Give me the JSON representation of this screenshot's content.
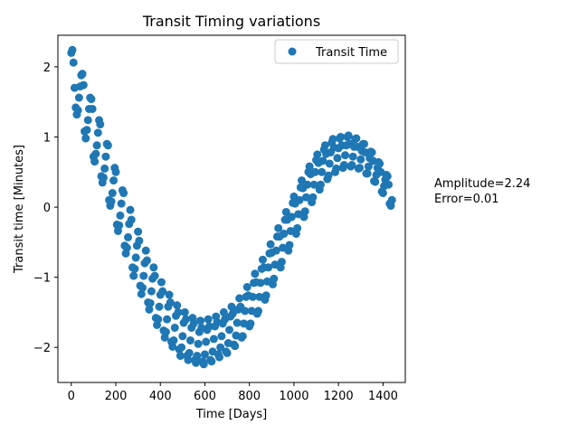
{
  "chart_data": {
    "type": "scatter",
    "title": "Transit Timing variations",
    "xlabel": "Time [Days]",
    "ylabel": "Transit time [Minutes]",
    "xlim": [
      -60,
      1500
    ],
    "ylim": [
      -2.5,
      2.45
    ],
    "xticks": [
      0,
      200,
      400,
      600,
      800,
      1000,
      1200,
      1400
    ],
    "yticks": [
      -2,
      -1,
      0,
      1,
      2
    ],
    "xtick_labels": [
      "0",
      "200",
      "400",
      "600",
      "800",
      "1000",
      "1200",
      "1400"
    ],
    "ytick_labels": [
      "−2",
      "−1",
      "0",
      "1",
      "2"
    ],
    "grid": false,
    "legend_position": "top-right",
    "color": "#1f77b4",
    "series": [
      {
        "name": "Transit Time",
        "points": [
          [
            0,
            2.2
          ],
          [
            5,
            2.24
          ],
          [
            10,
            2.06
          ],
          [
            15,
            1.7
          ],
          [
            20,
            1.42
          ],
          [
            25,
            1.32
          ],
          [
            30,
            1.38
          ],
          [
            35,
            1.56
          ],
          [
            40,
            1.72
          ],
          [
            45,
            1.88
          ],
          [
            50,
            1.9
          ],
          [
            55,
            1.74
          ],
          [
            60,
            1.08
          ],
          [
            65,
            0.98
          ],
          [
            70,
            1.1
          ],
          [
            75,
            1.24
          ],
          [
            80,
            1.4
          ],
          [
            85,
            1.56
          ],
          [
            90,
            1.54
          ],
          [
            95,
            1.4
          ],
          [
            100,
            0.72
          ],
          [
            105,
            0.65
          ],
          [
            110,
            0.76
          ],
          [
            115,
            0.88
          ],
          [
            120,
            1.06
          ],
          [
            125,
            1.24
          ],
          [
            130,
            1.18
          ],
          [
            135,
            0.44
          ],
          [
            140,
            0.35
          ],
          [
            145,
            0.42
          ],
          [
            150,
            0.55
          ],
          [
            155,
            0.72
          ],
          [
            160,
            0.9
          ],
          [
            165,
            0.88
          ],
          [
            170,
            0.1
          ],
          [
            175,
            0.02
          ],
          [
            180,
            0.08
          ],
          [
            185,
            0.2
          ],
          [
            190,
            0.38
          ],
          [
            195,
            0.56
          ],
          [
            200,
            0.5
          ],
          [
            205,
            -0.25
          ],
          [
            210,
            -0.34
          ],
          [
            215,
            -0.26
          ],
          [
            220,
            -0.12
          ],
          [
            225,
            0.05
          ],
          [
            230,
            0.24
          ],
          [
            235,
            0.2
          ],
          [
            240,
            -0.55
          ],
          [
            245,
            -0.66
          ],
          [
            250,
            -0.58
          ],
          [
            255,
            -0.43
          ],
          [
            260,
            -0.24
          ],
          [
            265,
            -0.04
          ],
          [
            270,
            -0.18
          ],
          [
            275,
            -0.86
          ],
          [
            280,
            -0.98
          ],
          [
            285,
            -0.88
          ],
          [
            290,
            -0.72
          ],
          [
            295,
            -0.55
          ],
          [
            300,
            -0.35
          ],
          [
            305,
            -0.48
          ],
          [
            310,
            -1.12
          ],
          [
            315,
            -1.24
          ],
          [
            320,
            -1.15
          ],
          [
            325,
            -0.98
          ],
          [
            330,
            -0.8
          ],
          [
            335,
            -0.62
          ],
          [
            340,
            -0.76
          ],
          [
            345,
            -1.36
          ],
          [
            350,
            -1.46
          ],
          [
            355,
            -1.37
          ],
          [
            360,
            -1.2
          ],
          [
            365,
            -1.02
          ],
          [
            370,
            -0.86
          ],
          [
            375,
            -0.98
          ],
          [
            380,
            -1.58
          ],
          [
            385,
            -1.68
          ],
          [
            390,
            -1.6
          ],
          [
            395,
            -1.42
          ],
          [
            400,
            -1.25
          ],
          [
            405,
            -1.07
          ],
          [
            410,
            -1.2
          ],
          [
            415,
            -1.76
          ],
          [
            420,
            -1.86
          ],
          [
            425,
            -1.78
          ],
          [
            430,
            -1.6
          ],
          [
            435,
            -1.42
          ],
          [
            440,
            -1.25
          ],
          [
            445,
            -1.36
          ],
          [
            450,
            -1.92
          ],
          [
            455,
            -1.99
          ],
          [
            460,
            -1.9
          ],
          [
            465,
            -1.72
          ],
          [
            470,
            -1.55
          ],
          [
            475,
            -1.4
          ],
          [
            480,
            -1.5
          ],
          [
            485,
            -2.03
          ],
          [
            490,
            -2.12
          ],
          [
            495,
            -2.0
          ],
          [
            500,
            -1.84
          ],
          [
            505,
            -1.65
          ],
          [
            510,
            -1.5
          ],
          [
            515,
            -1.6
          ],
          [
            520,
            -2.12
          ],
          [
            525,
            -2.18
          ],
          [
            530,
            -2.08
          ],
          [
            535,
            -1.9
          ],
          [
            540,
            -1.72
          ],
          [
            545,
            -1.58
          ],
          [
            550,
            -1.66
          ],
          [
            555,
            -2.18
          ],
          [
            560,
            -2.22
          ],
          [
            565,
            -2.12
          ],
          [
            570,
            -1.95
          ],
          [
            575,
            -1.78
          ],
          [
            580,
            -1.62
          ],
          [
            585,
            -1.72
          ],
          [
            590,
            -2.2
          ],
          [
            595,
            -2.24
          ],
          [
            600,
            -2.1
          ],
          [
            605,
            -1.92
          ],
          [
            610,
            -1.75
          ],
          [
            615,
            -1.6
          ],
          [
            620,
            -1.7
          ],
          [
            625,
            -2.18
          ],
          [
            630,
            -2.2
          ],
          [
            635,
            -2.06
          ],
          [
            640,
            -1.88
          ],
          [
            645,
            -1.7
          ],
          [
            650,
            -1.56
          ],
          [
            655,
            -1.64
          ],
          [
            660,
            -2.1
          ],
          [
            665,
            -2.14
          ],
          [
            670,
            -2.0
          ],
          [
            675,
            -1.84
          ],
          [
            680,
            -1.66
          ],
          [
            685,
            -1.5
          ],
          [
            690,
            -1.6
          ],
          [
            695,
            -2.06
          ],
          [
            700,
            -2.08
          ],
          [
            705,
            -1.94
          ],
          [
            710,
            -1.75
          ],
          [
            715,
            -1.56
          ],
          [
            720,
            -1.42
          ],
          [
            725,
            -1.52
          ],
          [
            730,
            -1.96
          ],
          [
            735,
            -1.98
          ],
          [
            740,
            -1.83
          ],
          [
            745,
            -1.65
          ],
          [
            750,
            -1.46
          ],
          [
            755,
            -1.3
          ],
          [
            760,
            -1.42
          ],
          [
            765,
            -1.86
          ],
          [
            770,
            -1.84
          ],
          [
            775,
            -1.66
          ],
          [
            780,
            -1.48
          ],
          [
            785,
            -1.28
          ],
          [
            790,
            -1.14
          ],
          [
            795,
            -1.26
          ],
          [
            800,
            -1.7
          ],
          [
            805,
            -1.66
          ],
          [
            810,
            -1.48
          ],
          [
            815,
            -1.28
          ],
          [
            820,
            -1.08
          ],
          [
            825,
            -0.95
          ],
          [
            830,
            -1.07
          ],
          [
            835,
            -1.52
          ],
          [
            840,
            -1.48
          ],
          [
            845,
            -1.28
          ],
          [
            850,
            -1.08
          ],
          [
            855,
            -0.88
          ],
          [
            860,
            -0.75
          ],
          [
            865,
            -0.86
          ],
          [
            870,
            -1.32
          ],
          [
            875,
            -1.26
          ],
          [
            880,
            -1.06
          ],
          [
            885,
            -0.86
          ],
          [
            890,
            -0.66
          ],
          [
            895,
            -0.53
          ],
          [
            900,
            -0.65
          ],
          [
            905,
            -1.1
          ],
          [
            910,
            -1.02
          ],
          [
            915,
            -0.82
          ],
          [
            920,
            -0.62
          ],
          [
            925,
            -0.42
          ],
          [
            930,
            -0.3
          ],
          [
            935,
            -0.42
          ],
          [
            940,
            -0.86
          ],
          [
            945,
            -0.78
          ],
          [
            950,
            -0.58
          ],
          [
            955,
            -0.38
          ],
          [
            960,
            -0.18
          ],
          [
            965,
            -0.07
          ],
          [
            970,
            -0.18
          ],
          [
            975,
            -0.62
          ],
          [
            980,
            -0.54
          ],
          [
            985,
            -0.34
          ],
          [
            990,
            -0.14
          ],
          [
            995,
            0.06
          ],
          [
            1000,
            0.15
          ],
          [
            1005,
            0.05
          ],
          [
            1010,
            -0.38
          ],
          [
            1015,
            -0.3
          ],
          [
            1020,
            -0.1
          ],
          [
            1025,
            0.1
          ],
          [
            1030,
            0.28
          ],
          [
            1035,
            0.38
          ],
          [
            1040,
            0.27
          ],
          [
            1045,
            -0.14
          ],
          [
            1050,
            -0.06
          ],
          [
            1055,
            0.14
          ],
          [
            1060,
            0.32
          ],
          [
            1065,
            0.5
          ],
          [
            1070,
            0.58
          ],
          [
            1075,
            0.47
          ],
          [
            1080,
            0.07
          ],
          [
            1085,
            0.14
          ],
          [
            1090,
            0.32
          ],
          [
            1095,
            0.5
          ],
          [
            1100,
            0.67
          ],
          [
            1105,
            0.75
          ],
          [
            1110,
            0.63
          ],
          [
            1115,
            0.25
          ],
          [
            1120,
            0.32
          ],
          [
            1125,
            0.5
          ],
          [
            1130,
            0.66
          ],
          [
            1135,
            0.82
          ],
          [
            1140,
            0.88
          ],
          [
            1145,
            0.76
          ],
          [
            1150,
            0.4
          ],
          [
            1155,
            0.45
          ],
          [
            1160,
            0.62
          ],
          [
            1165,
            0.78
          ],
          [
            1170,
            0.92
          ],
          [
            1175,
            0.97
          ],
          [
            1180,
            0.85
          ],
          [
            1185,
            0.5
          ],
          [
            1190,
            0.55
          ],
          [
            1195,
            0.7
          ],
          [
            1200,
            0.84
          ],
          [
            1205,
            0.98
          ],
          [
            1210,
            1.0
          ],
          [
            1215,
            0.88
          ],
          [
            1220,
            0.56
          ],
          [
            1225,
            0.6
          ],
          [
            1230,
            0.74
          ],
          [
            1235,
            0.88
          ],
          [
            1240,
            1.0
          ],
          [
            1245,
            1.02
          ],
          [
            1250,
            0.9
          ],
          [
            1255,
            0.58
          ],
          [
            1260,
            0.6
          ],
          [
            1265,
            0.72
          ],
          [
            1270,
            0.86
          ],
          [
            1275,
            0.97
          ],
          [
            1280,
            0.98
          ],
          [
            1285,
            0.86
          ],
          [
            1290,
            0.55
          ],
          [
            1295,
            0.56
          ],
          [
            1300,
            0.68
          ],
          [
            1305,
            0.8
          ],
          [
            1310,
            0.9
          ],
          [
            1315,
            0.9
          ],
          [
            1320,
            0.78
          ],
          [
            1325,
            0.48
          ],
          [
            1330,
            0.48
          ],
          [
            1335,
            0.58
          ],
          [
            1340,
            0.7
          ],
          [
            1345,
            0.79
          ],
          [
            1350,
            0.78
          ],
          [
            1355,
            0.66
          ],
          [
            1360,
            0.37
          ],
          [
            1365,
            0.36
          ],
          [
            1370,
            0.46
          ],
          [
            1375,
            0.56
          ],
          [
            1380,
            0.64
          ],
          [
            1385,
            0.62
          ],
          [
            1390,
            0.5
          ],
          [
            1395,
            0.22
          ],
          [
            1400,
            0.2
          ],
          [
            1405,
            0.3
          ],
          [
            1410,
            0.39
          ],
          [
            1415,
            0.46
          ],
          [
            1420,
            0.44
          ],
          [
            1425,
            0.32
          ],
          [
            1430,
            0.05
          ],
          [
            1435,
            0.02
          ],
          [
            1440,
            0.1
          ]
        ]
      }
    ],
    "annotation": {
      "lines": [
        "Amplitude=2.24",
        "Error=0.01"
      ]
    }
  }
}
